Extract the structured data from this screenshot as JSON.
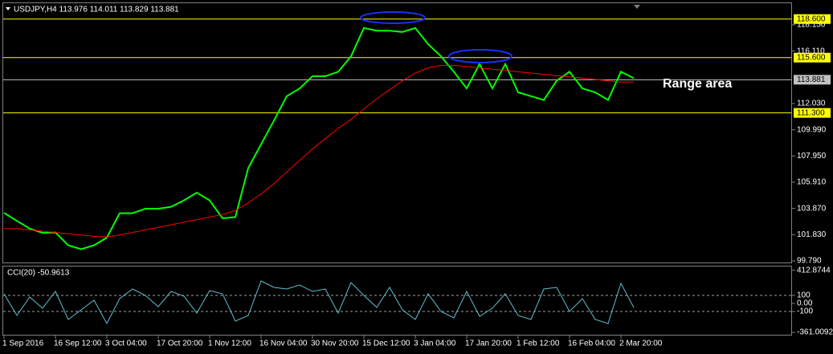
{
  "chart_data": [
    {
      "type": "line",
      "title": "USDJPY,H4  113.976 114.011 113.829 113.881",
      "categories": [
        "1 Sep 2016",
        null,
        null,
        null,
        "16 Sep 12:00",
        null,
        null,
        null,
        "3 Oct 04:00",
        null,
        null,
        null,
        "17 Oct 20:00",
        null,
        null,
        null,
        "1 Nov 12:00",
        null,
        null,
        null,
        "16 Nov 04:00",
        null,
        null,
        null,
        "30 Nov 20:00",
        null,
        null,
        null,
        "15 Dec 12:00",
        null,
        null,
        null,
        "3 Jan 04:00",
        null,
        null,
        null,
        "17 Jan 20:00",
        null,
        null,
        null,
        "1 Feb 12:00",
        null,
        null,
        null,
        "16 Feb 04:00",
        null,
        null,
        null,
        "2 Mar 20:00",
        null
      ],
      "series": [
        {
          "color": "#00ff00",
          "values": [
            103.53,
            102.9,
            102.3,
            101.97,
            102.0,
            101.0,
            100.7,
            101.0,
            101.6,
            103.5,
            103.5,
            103.85,
            103.85,
            104.0,
            104.5,
            105.1,
            104.5,
            103.1,
            103.2,
            107.0,
            108.85,
            110.7,
            112.6,
            113.2,
            114.15,
            114.15,
            114.5,
            115.7,
            117.9,
            117.7,
            117.7,
            117.6,
            117.9,
            116.65,
            115.7,
            114.5,
            113.2,
            115.1,
            113.2,
            115.1,
            112.9,
            112.6,
            112.3,
            113.8,
            114.5,
            113.2,
            112.9,
            112.3,
            114.5,
            114.0
          ]
        },
        {
          "color": "#ff0000",
          "values": [
            102.3,
            102.3,
            102.2,
            102.1,
            102.0,
            101.9,
            101.8,
            101.7,
            101.65,
            101.8,
            102.0,
            102.2,
            102.4,
            102.6,
            102.8,
            103.0,
            103.2,
            103.4,
            103.7,
            104.3,
            105.0,
            105.8,
            106.7,
            107.6,
            108.5,
            109.3,
            110.1,
            110.8,
            111.6,
            112.4,
            113.1,
            113.8,
            114.4,
            114.8,
            115.0,
            115.0,
            114.9,
            114.8,
            114.7,
            114.6,
            114.5,
            114.4,
            114.3,
            114.2,
            114.1,
            114.0,
            113.9,
            113.8,
            113.7,
            113.7
          ]
        }
      ],
      "ylim": [
        99.665,
        119.77
      ],
      "yticks": [
        {
          "value": 118.15,
          "label": "118.150"
        },
        {
          "value": 116.11,
          "label": "116.110"
        },
        {
          "value": 112.03,
          "label": "112.030"
        },
        {
          "value": 109.99,
          "label": "109.990"
        },
        {
          "value": 107.95,
          "label": "107.950"
        },
        {
          "value": 105.91,
          "label": "105.910"
        },
        {
          "value": 103.87,
          "label": "103.870"
        },
        {
          "value": 101.83,
          "label": "101.830"
        },
        {
          "value": 99.79,
          "label": "99.790"
        }
      ],
      "levels": [
        {
          "value": 118.6,
          "label": "118.600",
          "color": "#ffff00"
        },
        {
          "value": 115.6,
          "label": "115.600",
          "color": "#ffff00"
        },
        {
          "value": 111.3,
          "label": "111.300",
          "color": "#ffff00"
        },
        {
          "value": 113.881,
          "label": "113.881",
          "color": "#c0c0c0"
        }
      ],
      "annotation": "Range area"
    },
    {
      "type": "line",
      "title": "CCI(20) -50.9613",
      "series": [
        {
          "color": "#5fbfcf",
          "values": [
            120,
            -150,
            80,
            -60,
            150,
            -200,
            -80,
            40,
            -250,
            60,
            180,
            100,
            -40,
            150,
            90,
            -120,
            160,
            120,
            -220,
            -150,
            280,
            200,
            180,
            230,
            150,
            180,
            -120,
            260,
            100,
            -50,
            200,
            -80,
            -200,
            120,
            -100,
            -180,
            150,
            -160,
            -60,
            120,
            -150,
            -200,
            180,
            200,
            -100,
            60,
            -200,
            -250,
            250,
            -50.9613
          ]
        }
      ],
      "ylim": [
        -400,
        470
      ],
      "yticks": [
        {
          "value": 412.8744,
          "label": "412.8744"
        },
        100,
        {
          "value": 0,
          "label": "0.00"
        },
        -100,
        {
          "value": -361.0092,
          "label": "-361.0092"
        }
      ]
    }
  ]
}
